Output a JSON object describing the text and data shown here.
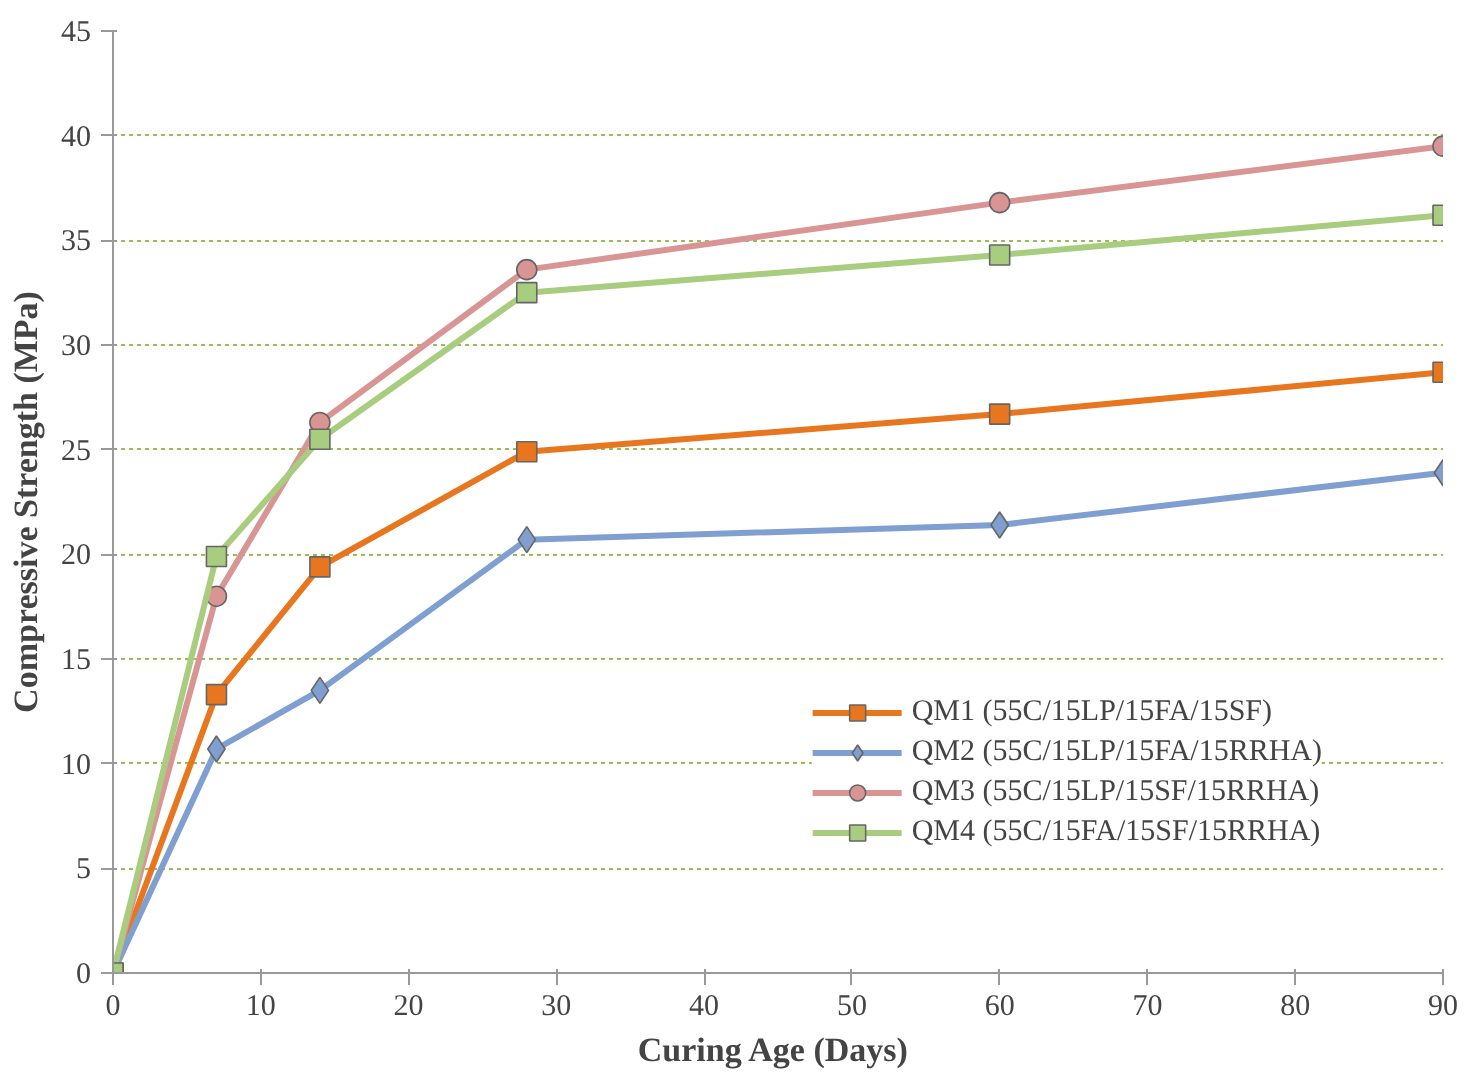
{
  "chart_data": {
    "type": "line",
    "xlabel": "Curing  Age (Days)",
    "ylabel": "Compressive Strength (MPa)",
    "x": [
      0,
      7,
      14,
      28,
      60,
      90
    ],
    "series": [
      {
        "name": "QM1 (55C/15LP/15FA/15SF)",
        "color": "#e8761e",
        "marker": "square",
        "values": [
          0,
          13.3,
          19.4,
          24.9,
          26.7,
          28.7
        ]
      },
      {
        "name": "QM2 (55C/15LP/15FA/15RRHA)",
        "color": "#7f9fd0",
        "marker": "diamond",
        "values": [
          0,
          10.7,
          13.5,
          20.7,
          21.4,
          23.9
        ]
      },
      {
        "name": "QM3 (55C/15LP/15SF/15RRHA)",
        "color": "#d99594",
        "marker": "circle",
        "values": [
          0,
          18.0,
          26.3,
          33.6,
          36.8,
          39.5
        ]
      },
      {
        "name": "QM4 (55C/15FA/15SF/15RRHA)",
        "color": "#a9cd7f",
        "marker": "square",
        "values": [
          0,
          19.9,
          25.5,
          32.5,
          34.3,
          36.2
        ]
      }
    ],
    "xlim": [
      0,
      90
    ],
    "xticks": [
      0,
      10,
      20,
      30,
      40,
      50,
      60,
      70,
      80,
      90
    ],
    "ylim": [
      0,
      45
    ],
    "yticks": [
      0,
      5,
      10,
      15,
      20,
      25,
      30,
      35,
      40,
      45
    ],
    "grid": "y",
    "legend": "bottom right",
    "line_style": "solid"
  }
}
